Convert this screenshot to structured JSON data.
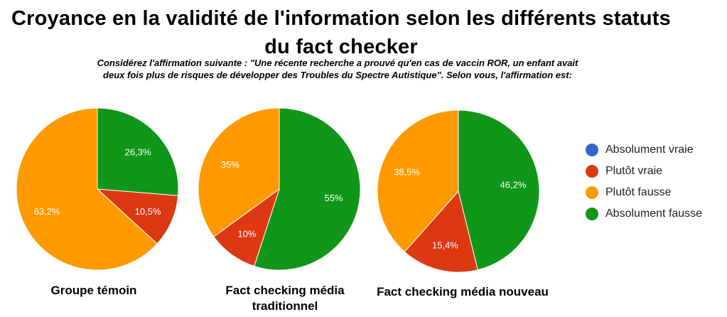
{
  "title": "Croyance en la validité de l'information selon les différents statuts du fact checker",
  "subtitle": "Considérez l'affirmation suivante : \"Une récente recherche a prouvé qu'en cas de vaccin ROR, un enfant avait deux fois plus de risques de développer des Troubles du Spectre Autistique\". Selon vous, l'affirmation est:",
  "legend": [
    {
      "label": "Absolument vraie",
      "color": "#3366cc"
    },
    {
      "label": "Plutôt vraie",
      "color": "#dc3912"
    },
    {
      "label": "Plutôt fausse",
      "color": "#ff9900"
    },
    {
      "label": "Absolument fausse",
      "color": "#109618"
    }
  ],
  "chart_data": [
    {
      "type": "pie",
      "title": "Groupe témoin",
      "categories": [
        "Absolument vraie",
        "Plutôt vraie",
        "Plutôt fausse",
        "Absolument fausse"
      ],
      "values": [
        0,
        10.5,
        63.2,
        26.3
      ],
      "labels": [
        "",
        "10,5%",
        "63,2%",
        "26,3%"
      ]
    },
    {
      "type": "pie",
      "title": "Fact checking média traditionnel",
      "categories": [
        "Absolument vraie",
        "Plutôt vraie",
        "Plutôt fausse",
        "Absolument fausse"
      ],
      "values": [
        0,
        10,
        35,
        55
      ],
      "labels": [
        "",
        "10%",
        "35%",
        "55%"
      ]
    },
    {
      "type": "pie",
      "title": "Fact checking média nouveau",
      "categories": [
        "Absolument vraie",
        "Plutôt vraie",
        "Plutôt fausse",
        "Absolument fausse"
      ],
      "values": [
        0,
        15.4,
        38.5,
        46.2
      ],
      "labels": [
        "",
        "15,4%",
        "38,5%",
        "46,2%"
      ]
    }
  ]
}
